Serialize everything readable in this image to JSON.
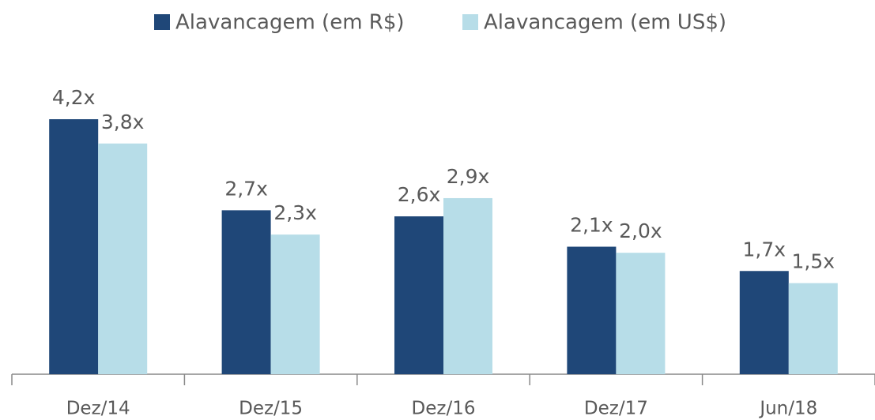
{
  "chart_data": {
    "type": "bar",
    "categories": [
      "Dez/14",
      "Dez/15",
      "Dez/16",
      "Dez/17",
      "Jun/18"
    ],
    "series": [
      {
        "name": "Alavancagem (em R$)",
        "color": "#1f4778",
        "values": [
          4.2,
          2.7,
          2.6,
          2.1,
          1.7
        ],
        "value_labels": [
          "4,2x",
          "2,7x",
          "2,6x",
          "2,1x",
          "1,7x"
        ]
      },
      {
        "name": "Alavancagem (em US$)",
        "color": "#b7dde8",
        "values": [
          3.8,
          2.3,
          2.9,
          2.0,
          1.5
        ],
        "value_labels": [
          "3,8x",
          "2,3x",
          "2,9x",
          "2,0x",
          "1,5x"
        ]
      }
    ],
    "legend": "top"
  }
}
